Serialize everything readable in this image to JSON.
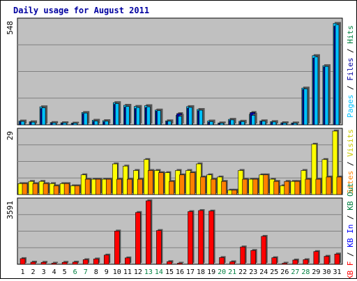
{
  "chart_data": [
    {
      "type": "bar",
      "title": "Daily usage for August 2011",
      "categories": [
        "1",
        "2",
        "3",
        "4",
        "5",
        "6",
        "7",
        "8",
        "9",
        "10",
        "11",
        "12",
        "13",
        "14",
        "15",
        "16",
        "17",
        "18",
        "19",
        "20",
        "21",
        "22",
        "23",
        "24",
        "25",
        "26",
        "27",
        "28",
        "29",
        "30",
        "31"
      ],
      "weekend_days": [
        "6",
        "7",
        "13",
        "14",
        "20",
        "21",
        "27",
        "28"
      ],
      "y_max_label": "548",
      "ylim": [
        0,
        548
      ],
      "grid": true,
      "series": [
        {
          "name": "Hits",
          "color": "#00C0FF",
          "values": [
            20,
            16,
            95,
            12,
            11,
            9,
            65,
            24,
            22,
            117,
            103,
            97,
            101,
            78,
            21,
            50,
            96,
            81,
            20,
            10,
            29,
            19,
            56,
            21,
            17,
            11,
            10,
            194,
            365,
            312,
            535
          ]
        },
        {
          "name": "Files",
          "color": "#0000A0",
          "values": [
            16,
            13,
            86,
            9,
            8,
            6,
            59,
            18,
            16,
            108,
            93,
            86,
            91,
            72,
            17,
            59,
            88,
            74,
            14,
            7,
            23,
            15,
            65,
            17,
            13,
            8,
            7,
            186,
            352,
            305,
            520
          ]
        },
        {
          "name": "Pages",
          "color": "#00C0FF",
          "values": [
            18,
            14,
            90,
            10,
            10,
            8,
            62,
            20,
            19,
            112,
            97,
            91,
            95,
            75,
            19,
            45,
            92,
            77,
            17,
            8,
            26,
            17,
            50,
            19,
            15,
            9,
            8,
            190,
            358,
            308,
            528
          ]
        }
      ]
    },
    {
      "type": "bar",
      "y_max_label": "29",
      "ylim": [
        0,
        29
      ],
      "grid": true,
      "series": [
        {
          "name": "Visits",
          "color": "#FFFF00",
          "values": [
            5,
            6,
            6,
            5,
            5,
            4,
            9,
            7,
            7,
            14,
            13,
            11,
            16,
            11,
            10,
            11,
            11,
            14,
            9,
            8,
            2,
            11,
            7,
            9,
            7,
            4,
            6,
            11,
            23,
            16,
            29
          ]
        },
        {
          "name": "Sites",
          "color": "#FF8000",
          "values": [
            5,
            5,
            5,
            4,
            5,
            4,
            7,
            7,
            7,
            7,
            7,
            7,
            11,
            10,
            6,
            9,
            10,
            8,
            7,
            6,
            2,
            7,
            7,
            9,
            6,
            6,
            6,
            7,
            7,
            8,
            8
          ]
        }
      ]
    },
    {
      "type": "bar",
      "y_max_label": "3591",
      "ylim": [
        0,
        3591
      ],
      "grid": true,
      "series": [
        {
          "name": "KB F",
          "color": "#FF0000",
          "values": [
            320,
            120,
            110,
            60,
            110,
            120,
            260,
            300,
            520,
            1880,
            360,
            2930,
            3591,
            1910,
            150,
            60,
            2980,
            3040,
            3010,
            380,
            140,
            980,
            780,
            1580,
            370,
            60,
            240,
            260,
            720,
            450,
            580
          ]
        },
        {
          "name": "KB Out",
          "color": "#008040",
          "values": []
        },
        {
          "name": "KB In",
          "color": "#0000FF",
          "values": []
        }
      ]
    }
  ]
}
